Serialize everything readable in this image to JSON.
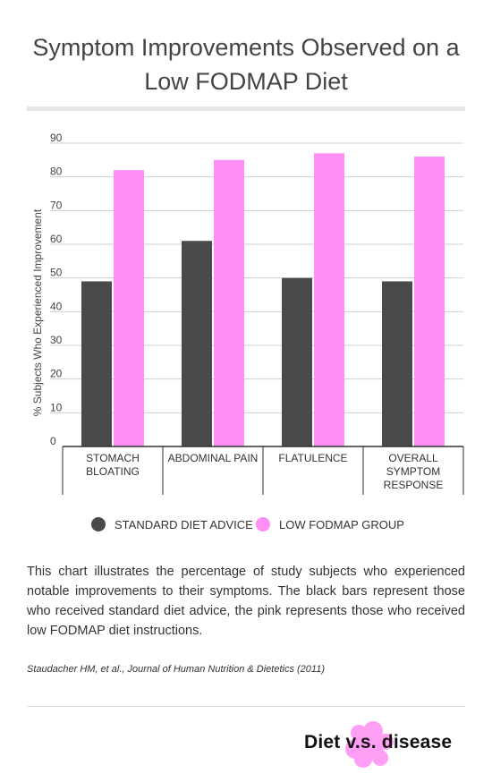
{
  "title": "Symptom Improvements Observed on a Low FODMAP Diet",
  "chart_data": {
    "type": "bar",
    "categories": [
      [
        "STOMACH",
        "BLOATING"
      ],
      [
        "ABDOMINAL PAIN"
      ],
      [
        "FLATULENCE"
      ],
      [
        "OVERALL",
        "SYMPTOM",
        "RESPONSE"
      ]
    ],
    "series": [
      {
        "name": "STANDARD DIET ADVICE",
        "values": [
          49,
          61,
          50,
          49
        ],
        "color": "#4a4a4a"
      },
      {
        "name": "LOW FODMAP GROUP",
        "values": [
          82,
          85,
          87,
          86
        ],
        "color": "#ff8ef5"
      }
    ],
    "ylabel": "% Subjects Who Experienced Improvement",
    "ylim": [
      0,
      90
    ],
    "yticks": [
      0,
      10,
      20,
      30,
      40,
      50,
      60,
      70,
      80,
      90
    ],
    "grid": true,
    "legend_position": "bottom"
  },
  "legend": {
    "standard_label": "STANDARD DIET ADVICE",
    "lowfodmap_label": "LOW FODMAP GROUP",
    "standard_color": "#4a4a4a",
    "lowfodmap_color": "#ff8ef5"
  },
  "caption": "This chart illustrates the percentage of study subjects who experienced notable improvements to their symptoms. The black bars represent those who received standard diet advice, the pink represents those who received low FODMAP diet instructions.",
  "source": "Staudacher HM, et al., Journal of Human Nutrition & Dietetics (2011)",
  "logo": {
    "text": "Diet v.s. disease",
    "accent_color": "#ff9ef5"
  }
}
